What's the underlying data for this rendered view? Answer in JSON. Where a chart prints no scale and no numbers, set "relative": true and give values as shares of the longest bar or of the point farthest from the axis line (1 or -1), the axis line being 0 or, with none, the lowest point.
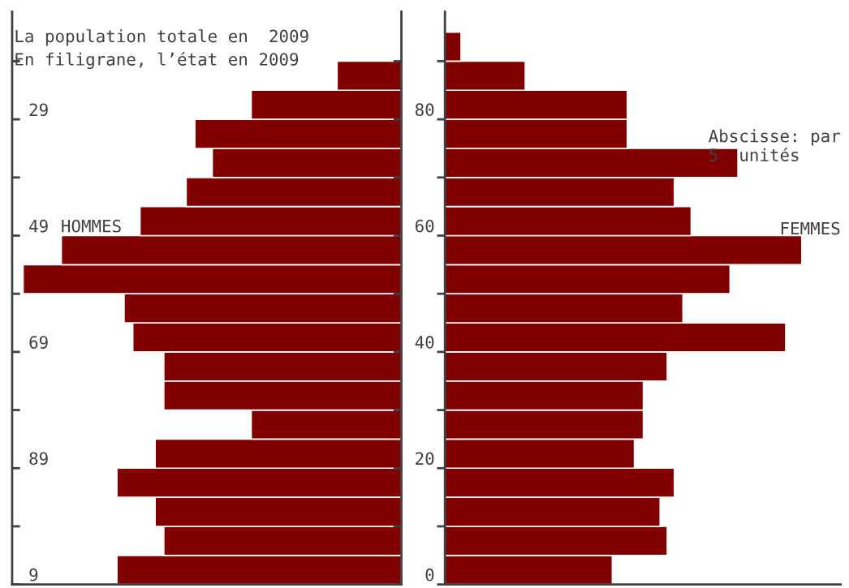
{
  "chart_data": [
    {
      "type": "bar",
      "orientation": "horizontal",
      "relative": true,
      "title": "La population totale en  2009",
      "subtitle": "En filigrane, l’état en 2009",
      "annotations": [
        "HOMMES",
        "9",
        "89",
        "69",
        "49",
        "29"
      ],
      "x": [
        2.5,
        7.5,
        12.5,
        17.5,
        22.5,
        27.5,
        32.5,
        37.5,
        42.5,
        47.5,
        52.5,
        57.5,
        62.5,
        67.5,
        72.5,
        77.5,
        82.5,
        87.5
      ],
      "values": [
        0.752,
        0.628,
        0.651,
        0.752,
        0.651,
        0.397,
        0.628,
        0.628,
        0.71,
        0.733,
        1,
        0.899,
        0.691,
        0.569,
        0.5,
        0.546,
        0.397,
        0.17
      ],
      "color": "#800000",
      "ylim": [
        0,
        98.5
      ],
      "yticks": [
        {
          "value": 0,
          "label": null
        },
        {
          "value": 10,
          "label": null
        },
        {
          "value": 20,
          "label": null
        },
        {
          "value": 30,
          "label": null
        },
        {
          "value": 40,
          "label": null
        },
        {
          "value": 50,
          "label": null
        },
        {
          "value": 60,
          "label": null
        },
        {
          "value": 70,
          "label": null
        },
        {
          "value": 80,
          "label": null
        },
        {
          "value": 90,
          "label": null
        }
      ],
      "tick_labels": false
    },
    {
      "type": "bar",
      "orientation": "horizontal",
      "relative": true,
      "annotations": [
        "FEMMES",
        "Abscisse: par\n5  unités"
      ],
      "x": [
        2.5,
        7.5,
        12.5,
        17.5,
        22.5,
        27.5,
        32.5,
        37.5,
        42.5,
        47.5,
        52.5,
        57.5,
        62.5,
        67.5,
        72.5,
        77.5,
        82.5,
        87.5,
        92.5
      ],
      "values": [
        0.469,
        0.623,
        0.603,
        0.643,
        0.531,
        0.556,
        0.556,
        0.623,
        0.955,
        0.667,
        0.799,
        1,
        0.69,
        0.643,
        0.821,
        0.511,
        0.511,
        0.225,
        0.045
      ],
      "color": "#800000",
      "ylim": [
        0,
        98.5
      ],
      "yticks": [
        0,
        {
          "value": 10,
          "label": null
        },
        20,
        {
          "value": 30,
          "label": null
        },
        40,
        {
          "value": 50,
          "label": null
        },
        60,
        {
          "value": 70,
          "label": null
        },
        80,
        {
          "value": 90,
          "label": null
        }
      ],
      "tick_labels": "y"
    }
  ]
}
